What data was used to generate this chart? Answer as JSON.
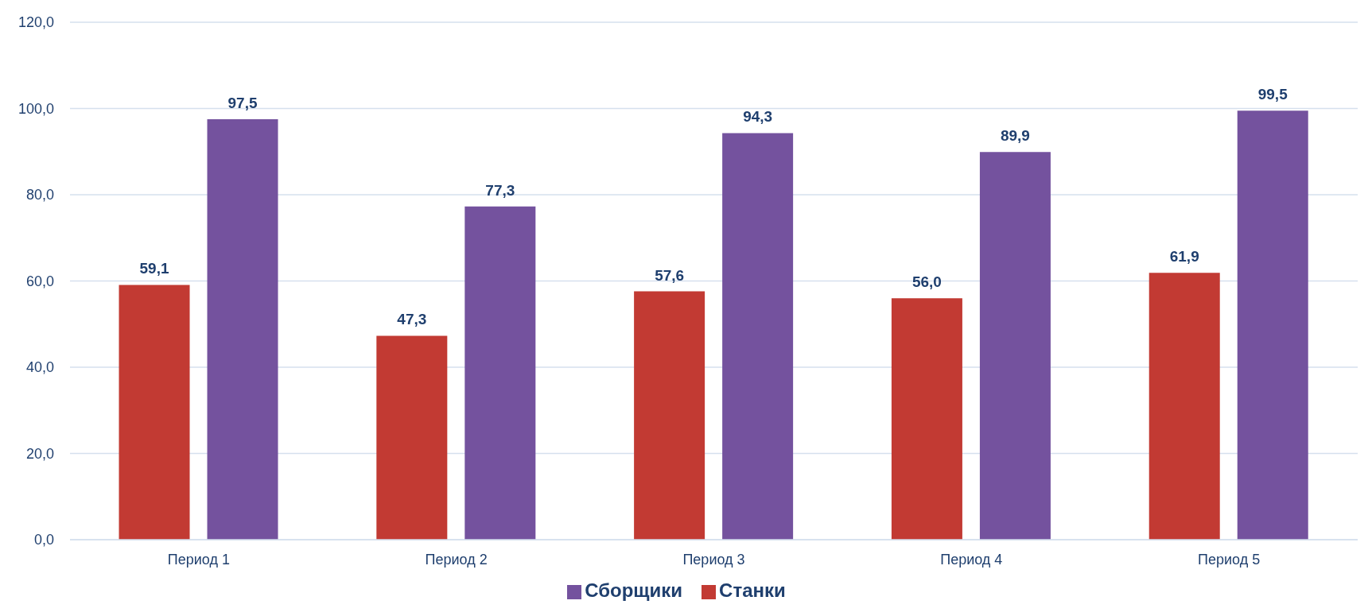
{
  "chart_data": {
    "type": "bar",
    "categories": [
      "Период 1",
      "Период 2",
      "Период 3",
      "Период 4",
      "Период 5"
    ],
    "series": [
      {
        "name": "Станки",
        "color": "#c23a33",
        "values": [
          59.1,
          47.3,
          57.6,
          56.0,
          61.9
        ],
        "value_labels": [
          "59,1",
          "47,3",
          "57,6",
          "56,0",
          "61,9"
        ]
      },
      {
        "name": "Сборщики",
        "color": "#74529e",
        "values": [
          97.5,
          77.3,
          94.3,
          89.9,
          99.5
        ],
        "value_labels": [
          "97,5",
          "77,3",
          "94,3",
          "89,9",
          "99,5"
        ]
      }
    ],
    "ylim": [
      0,
      120
    ],
    "yticks": [
      {
        "value": 0,
        "label": "0,0"
      },
      {
        "value": 20,
        "label": "20,0"
      },
      {
        "value": 40,
        "label": "40,0"
      },
      {
        "value": 60,
        "label": "60,0"
      },
      {
        "value": 80,
        "label": "80,0"
      },
      {
        "value": 100,
        "label": "100,0"
      },
      {
        "value": 120,
        "label": "120,0"
      }
    ],
    "grid": "y",
    "legend": "bottom"
  }
}
